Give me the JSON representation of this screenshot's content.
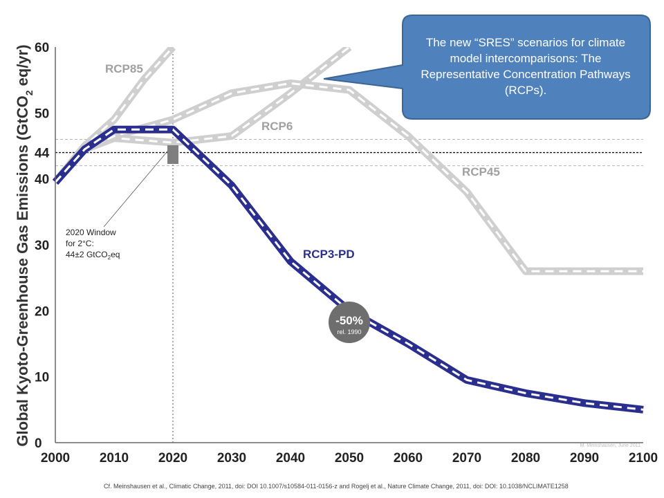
{
  "chart_data": {
    "type": "line",
    "ylabel_main": "Global Kyoto-Greenhouse Gas Emissions (GtCO",
    "ylabel_sub": "2",
    "ylabel_tail": " eq/yr)",
    "xlim": [
      2000,
      2100
    ],
    "ylim": [
      0,
      60
    ],
    "x_ticks": [
      "2000",
      "2010",
      "2020",
      "2030",
      "2040",
      "2050",
      "2060",
      "2070",
      "2080",
      "2090",
      "2100"
    ],
    "y_ticks": [
      {
        "value": 0,
        "label": "0"
      },
      {
        "value": 10,
        "label": "10"
      },
      {
        "value": 20,
        "label": "20"
      },
      {
        "value": 30,
        "label": "30"
      },
      {
        "value": 40,
        "label": "40"
      },
      {
        "value": 44,
        "label": "44"
      },
      {
        "value": 50,
        "label": "50"
      },
      {
        "value": 60,
        "label": "60"
      }
    ],
    "series": [
      {
        "name": "RCP85",
        "color": "#cfcfcf",
        "label_color": "#a0a0a0",
        "points": [
          [
            2000,
            39.5
          ],
          [
            2005,
            45
          ],
          [
            2010,
            49
          ],
          [
            2015,
            55
          ],
          [
            2020,
            60
          ]
        ]
      },
      {
        "name": "RCP6",
        "color": "#cfcfcf",
        "label_color": "#a0a0a0",
        "points": [
          [
            2000,
            39.5
          ],
          [
            2005,
            44.5
          ],
          [
            2010,
            46.2
          ],
          [
            2020,
            45.5
          ],
          [
            2030,
            46.5
          ],
          [
            2040,
            53
          ],
          [
            2050,
            60
          ]
        ]
      },
      {
        "name": "RCP45",
        "color": "#cfcfcf",
        "label_color": "#a0a0a0",
        "points": [
          [
            2000,
            39.5
          ],
          [
            2005,
            44.5
          ],
          [
            2010,
            46.5
          ],
          [
            2020,
            49
          ],
          [
            2030,
            53
          ],
          [
            2040,
            54.5
          ],
          [
            2050,
            53.5
          ],
          [
            2060,
            46.5
          ],
          [
            2070,
            38
          ],
          [
            2080,
            26
          ],
          [
            2090,
            26
          ],
          [
            2100,
            26
          ]
        ]
      },
      {
        "name": "RCP3-PD",
        "color": "#2a2f8f",
        "label_color": "#2a2f8f",
        "points": [
          [
            2000,
            39.5
          ],
          [
            2005,
            44.5
          ],
          [
            2010,
            47.5
          ],
          [
            2020,
            47.5
          ],
          [
            2030,
            39
          ],
          [
            2040,
            27.5
          ],
          [
            2050,
            20
          ],
          [
            2060,
            15
          ],
          [
            2070,
            9.5
          ],
          [
            2080,
            7.5
          ],
          [
            2090,
            6
          ],
          [
            2100,
            5
          ]
        ]
      }
    ],
    "reference_line": {
      "value": 44,
      "style": "dotted"
    },
    "band": {
      "low": 42,
      "high": 46,
      "style": "dashed"
    },
    "vertical_marker": {
      "value": 2020,
      "style": "dotted"
    },
    "annotations": {
      "window_lines": [
        "2020 Window",
        "for 2°C:",
        "44±2 GtCO",
        "2",
        "eq"
      ],
      "badge_value": "-50%",
      "badge_sub": "rel. 1990",
      "credit": "M. Meinshausen, June 2011"
    },
    "grid": false
  },
  "callout": {
    "text": "The new “SRES” scenarios for climate model intercomparisons: The Representative Concentration Pathways (RCPs).",
    "fill": "#4f81bd",
    "stroke": "#3a6594"
  },
  "citation": "Cf. Meinshausen et al., Climatic Change, 2011, doi: DOI 10.1007/s10584-011-0156-z and Rogelj et al., Nature Climate Change, 2011, doi: DOI: 10.1038/NCLIMATE1258"
}
